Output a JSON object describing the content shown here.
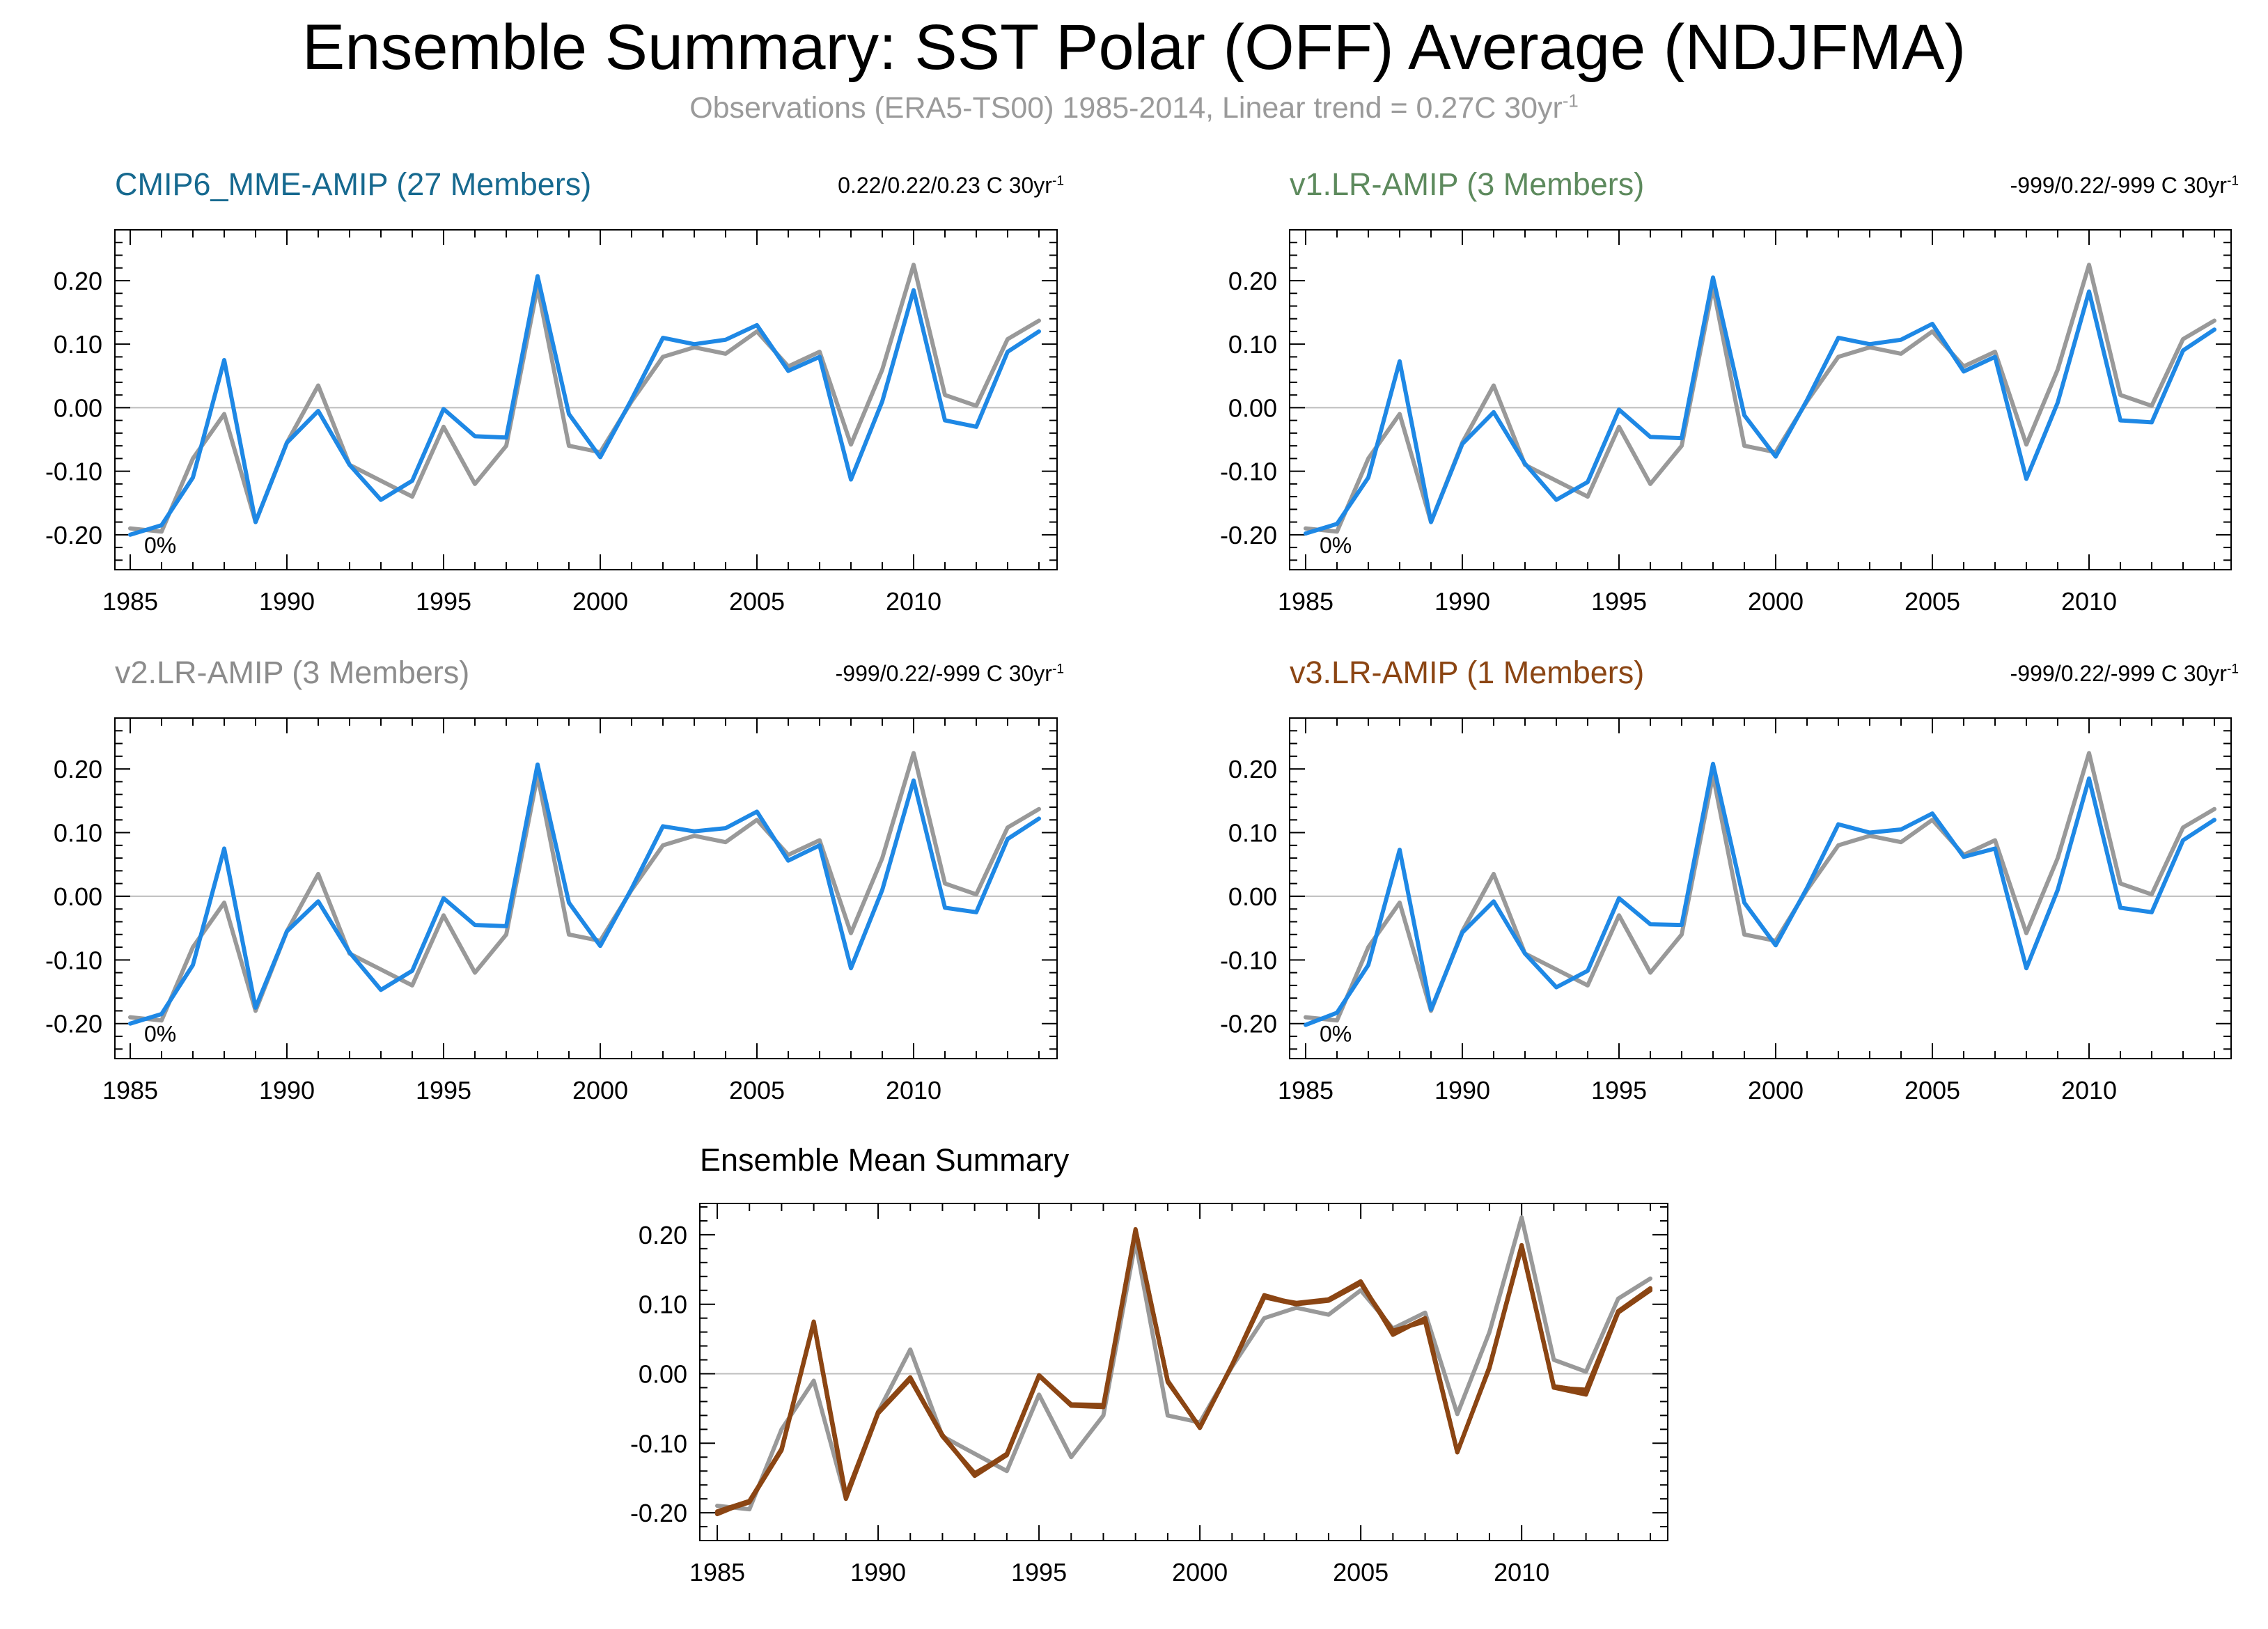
{
  "title": "Ensemble Summary: SST Polar (OFF) Average (NDJFMA)",
  "subtitle": "Observations (ERA5-TS00) 1985-2014, Linear trend = 0.27C 30yr",
  "subtitle_sup": "-1",
  "colors": {
    "observations": "#999999",
    "model": "#1e88e5",
    "mme_title": "#16698f",
    "v1_title": "#5d8a5d",
    "v2_title": "#8c8c8c",
    "v3_title": "#8b4513",
    "v3_line": "#8b4513",
    "zero_line": "#bdbdbd"
  },
  "chart_data": [
    {
      "type": "line",
      "title": "CMIP6_MME-AMIP (27 Members)",
      "trend_note": "0.22/0.22/0.23 C 30yr",
      "trend_note_sup": "-1",
      "percent_label": "0%",
      "x": [
        1985,
        1986,
        1987,
        1988,
        1989,
        1990,
        1991,
        1992,
        1993,
        1994,
        1995,
        1996,
        1997,
        1998,
        1999,
        2000,
        2001,
        2002,
        2003,
        2004,
        2005,
        2006,
        2007,
        2008,
        2009,
        2010,
        2011,
        2012,
        2013,
        2014
      ],
      "xticks": [
        1985,
        1990,
        1995,
        2000,
        2005,
        2010
      ],
      "yticks": [
        -0.2,
        -0.1,
        0.0,
        0.1,
        0.2
      ],
      "ytick_labels": [
        "-0.20",
        "-0.10",
        "0.00",
        "0.10",
        "0.20"
      ],
      "xlim": [
        1985,
        2014
      ],
      "ylim": [
        -0.255,
        0.28
      ],
      "series": [
        {
          "values": [
            -0.19,
            -0.195,
            -0.08,
            -0.01,
            -0.18,
            -0.055,
            0.035,
            -0.09,
            -0.115,
            -0.14,
            -0.03,
            -0.12,
            -0.06,
            0.19,
            -0.06,
            -0.07,
            0.01,
            0.08,
            0.095,
            0.085,
            0.12,
            0.065,
            0.088,
            -0.058,
            0.06,
            0.225,
            0.02,
            0.003,
            0.108,
            0.137
          ]
        },
        {
          "values": [
            -0.2,
            -0.185,
            -0.11,
            0.075,
            -0.18,
            -0.055,
            -0.005,
            -0.09,
            -0.145,
            -0.115,
            -0.002,
            -0.045,
            -0.047,
            0.207,
            -0.01,
            -0.078,
            0.013,
            0.11,
            0.1,
            0.107,
            0.13,
            0.058,
            0.08,
            -0.113,
            0.01,
            0.185,
            -0.02,
            -0.03,
            0.088,
            0.12
          ]
        }
      ]
    },
    {
      "type": "line",
      "title": "v1.LR-AMIP (3 Members)",
      "trend_note": "-999/0.22/-999 C 30yr",
      "trend_note_sup": "-1",
      "percent_label": "0%",
      "x": [
        1985,
        1986,
        1987,
        1988,
        1989,
        1990,
        1991,
        1992,
        1993,
        1994,
        1995,
        1996,
        1997,
        1998,
        1999,
        2000,
        2001,
        2002,
        2003,
        2004,
        2005,
        2006,
        2007,
        2008,
        2009,
        2010,
        2011,
        2012,
        2013,
        2014
      ],
      "xticks": [
        1985,
        1990,
        1995,
        2000,
        2005,
        2010
      ],
      "yticks": [
        -0.2,
        -0.1,
        0.0,
        0.1,
        0.2
      ],
      "ytick_labels": [
        "-0.20",
        "-0.10",
        "0.00",
        "0.10",
        "0.20"
      ],
      "xlim": [
        1985,
        2014
      ],
      "ylim": [
        -0.255,
        0.28
      ],
      "series": [
        {
          "values": [
            -0.19,
            -0.195,
            -0.08,
            -0.01,
            -0.18,
            -0.055,
            0.035,
            -0.09,
            -0.115,
            -0.14,
            -0.03,
            -0.12,
            -0.06,
            0.19,
            -0.06,
            -0.07,
            0.01,
            0.08,
            0.095,
            0.085,
            0.12,
            0.065,
            0.088,
            -0.058,
            0.06,
            0.225,
            0.02,
            0.003,
            0.108,
            0.137
          ]
        },
        {
          "values": [
            -0.198,
            -0.183,
            -0.11,
            0.073,
            -0.18,
            -0.057,
            -0.007,
            -0.088,
            -0.145,
            -0.117,
            -0.003,
            -0.046,
            -0.048,
            0.205,
            -0.012,
            -0.077,
            0.012,
            0.11,
            0.1,
            0.107,
            0.132,
            0.057,
            0.08,
            -0.112,
            0.008,
            0.183,
            -0.02,
            -0.023,
            0.09,
            0.123
          ]
        }
      ]
    },
    {
      "type": "line",
      "title": "v2.LR-AMIP (3 Members)",
      "trend_note": "-999/0.22/-999 C 30yr",
      "trend_note_sup": "-1",
      "percent_label": "0%",
      "x": [
        1985,
        1986,
        1987,
        1988,
        1989,
        1990,
        1991,
        1992,
        1993,
        1994,
        1995,
        1996,
        1997,
        1998,
        1999,
        2000,
        2001,
        2002,
        2003,
        2004,
        2005,
        2006,
        2007,
        2008,
        2009,
        2010,
        2011,
        2012,
        2013,
        2014
      ],
      "xticks": [
        1985,
        1990,
        1995,
        2000,
        2005,
        2010
      ],
      "yticks": [
        -0.2,
        -0.1,
        0.0,
        0.1,
        0.2
      ],
      "ytick_labels": [
        "-0.20",
        "-0.10",
        "0.00",
        "0.10",
        "0.20"
      ],
      "xlim": [
        1985,
        2014
      ],
      "ylim": [
        -0.255,
        0.28
      ],
      "series": [
        {
          "values": [
            -0.19,
            -0.195,
            -0.08,
            -0.01,
            -0.18,
            -0.055,
            0.035,
            -0.09,
            -0.115,
            -0.14,
            -0.03,
            -0.12,
            -0.06,
            0.19,
            -0.06,
            -0.07,
            0.01,
            0.08,
            0.095,
            0.085,
            0.12,
            0.065,
            0.088,
            -0.058,
            0.06,
            0.225,
            0.02,
            0.003,
            0.108,
            0.137
          ]
        },
        {
          "values": [
            -0.2,
            -0.185,
            -0.108,
            0.075,
            -0.175,
            -0.055,
            -0.008,
            -0.088,
            -0.147,
            -0.117,
            -0.003,
            -0.045,
            -0.047,
            0.207,
            -0.01,
            -0.078,
            0.012,
            0.11,
            0.102,
            0.107,
            0.133,
            0.056,
            0.08,
            -0.113,
            0.01,
            0.182,
            -0.018,
            -0.025,
            0.09,
            0.122
          ]
        }
      ]
    },
    {
      "type": "line",
      "title": "v3.LR-AMIP (1 Members)",
      "trend_note": "-999/0.22/-999 C 30yr",
      "trend_note_sup": "-1",
      "percent_label": "0%",
      "x": [
        1985,
        1986,
        1987,
        1988,
        1989,
        1990,
        1991,
        1992,
        1993,
        1994,
        1995,
        1996,
        1997,
        1998,
        1999,
        2000,
        2001,
        2002,
        2003,
        2004,
        2005,
        2006,
        2007,
        2008,
        2009,
        2010,
        2011,
        2012,
        2013,
        2014
      ],
      "xticks": [
        1985,
        1990,
        1995,
        2000,
        2005,
        2010
      ],
      "yticks": [
        -0.2,
        -0.1,
        0.0,
        0.1,
        0.2
      ],
      "ytick_labels": [
        "-0.20",
        "-0.10",
        "0.00",
        "0.10",
        "0.20"
      ],
      "xlim": [
        1985,
        2014
      ],
      "ylim": [
        -0.255,
        0.28
      ],
      "series": [
        {
          "values": [
            -0.19,
            -0.195,
            -0.08,
            -0.01,
            -0.18,
            -0.055,
            0.035,
            -0.09,
            -0.115,
            -0.14,
            -0.03,
            -0.12,
            -0.06,
            0.19,
            -0.06,
            -0.07,
            0.01,
            0.08,
            0.095,
            0.085,
            0.12,
            0.065,
            0.088,
            -0.058,
            0.06,
            0.225,
            0.02,
            0.003,
            0.108,
            0.137
          ]
        },
        {
          "values": [
            -0.202,
            -0.183,
            -0.108,
            0.073,
            -0.178,
            -0.057,
            -0.008,
            -0.09,
            -0.143,
            -0.117,
            -0.003,
            -0.044,
            -0.045,
            0.208,
            -0.01,
            -0.077,
            0.013,
            0.113,
            0.1,
            0.105,
            0.13,
            0.062,
            0.075,
            -0.113,
            0.01,
            0.185,
            -0.018,
            -0.025,
            0.088,
            0.12
          ]
        }
      ]
    },
    {
      "type": "line",
      "title": "Ensemble Mean Summary",
      "x": [
        1985,
        1986,
        1987,
        1988,
        1989,
        1990,
        1991,
        1992,
        1993,
        1994,
        1995,
        1996,
        1997,
        1998,
        1999,
        2000,
        2001,
        2002,
        2003,
        2004,
        2005,
        2006,
        2007,
        2008,
        2009,
        2010,
        2011,
        2012,
        2013,
        2014
      ],
      "xticks": [
        1985,
        1990,
        1995,
        2000,
        2005,
        2010
      ],
      "yticks": [
        -0.2,
        -0.1,
        0.0,
        0.1,
        0.2
      ],
      "ytick_labels": [
        "-0.20",
        "-0.10",
        "0.00",
        "0.10",
        "0.20"
      ],
      "xlim": [
        1985,
        2014
      ],
      "ylim": [
        -0.24,
        0.245
      ],
      "series": [
        {
          "values": [
            -0.19,
            -0.195,
            -0.08,
            -0.01,
            -0.18,
            -0.055,
            0.035,
            -0.09,
            -0.115,
            -0.14,
            -0.03,
            -0.12,
            -0.06,
            0.19,
            -0.06,
            -0.07,
            0.01,
            0.08,
            0.095,
            0.085,
            0.12,
            0.065,
            0.088,
            -0.058,
            0.06,
            0.225,
            0.02,
            0.003,
            0.108,
            0.137
          ]
        },
        {
          "values": [
            -0.2,
            -0.185,
            -0.11,
            0.075,
            -0.18,
            -0.055,
            -0.005,
            -0.09,
            -0.145,
            -0.115,
            -0.002,
            -0.045,
            -0.047,
            0.207,
            -0.01,
            -0.078,
            0.013,
            0.11,
            0.1,
            0.107,
            0.13,
            0.058,
            0.08,
            -0.113,
            0.01,
            0.185,
            -0.02,
            -0.03,
            0.088,
            0.12
          ]
        },
        {
          "values": [
            -0.198,
            -0.183,
            -0.11,
            0.073,
            -0.18,
            -0.057,
            -0.007,
            -0.088,
            -0.145,
            -0.117,
            -0.003,
            -0.046,
            -0.048,
            0.205,
            -0.012,
            -0.077,
            0.012,
            0.11,
            0.1,
            0.107,
            0.132,
            0.057,
            0.08,
            -0.112,
            0.008,
            0.183,
            -0.02,
            -0.023,
            0.09,
            0.123
          ]
        },
        {
          "values": [
            -0.2,
            -0.185,
            -0.108,
            0.075,
            -0.175,
            -0.055,
            -0.008,
            -0.088,
            -0.147,
            -0.117,
            -0.003,
            -0.045,
            -0.047,
            0.207,
            -0.01,
            -0.078,
            0.012,
            0.11,
            0.102,
            0.107,
            0.133,
            0.056,
            0.08,
            -0.113,
            0.01,
            0.182,
            -0.018,
            -0.025,
            0.09,
            0.122
          ]
        },
        {
          "values": [
            -0.202,
            -0.183,
            -0.108,
            0.073,
            -0.178,
            -0.057,
            -0.008,
            -0.09,
            -0.143,
            -0.117,
            -0.003,
            -0.044,
            -0.045,
            0.208,
            -0.01,
            -0.077,
            0.013,
            0.113,
            0.1,
            0.105,
            0.13,
            0.062,
            0.075,
            -0.113,
            0.01,
            0.185,
            -0.018,
            -0.025,
            0.088,
            0.12
          ]
        }
      ]
    }
  ]
}
